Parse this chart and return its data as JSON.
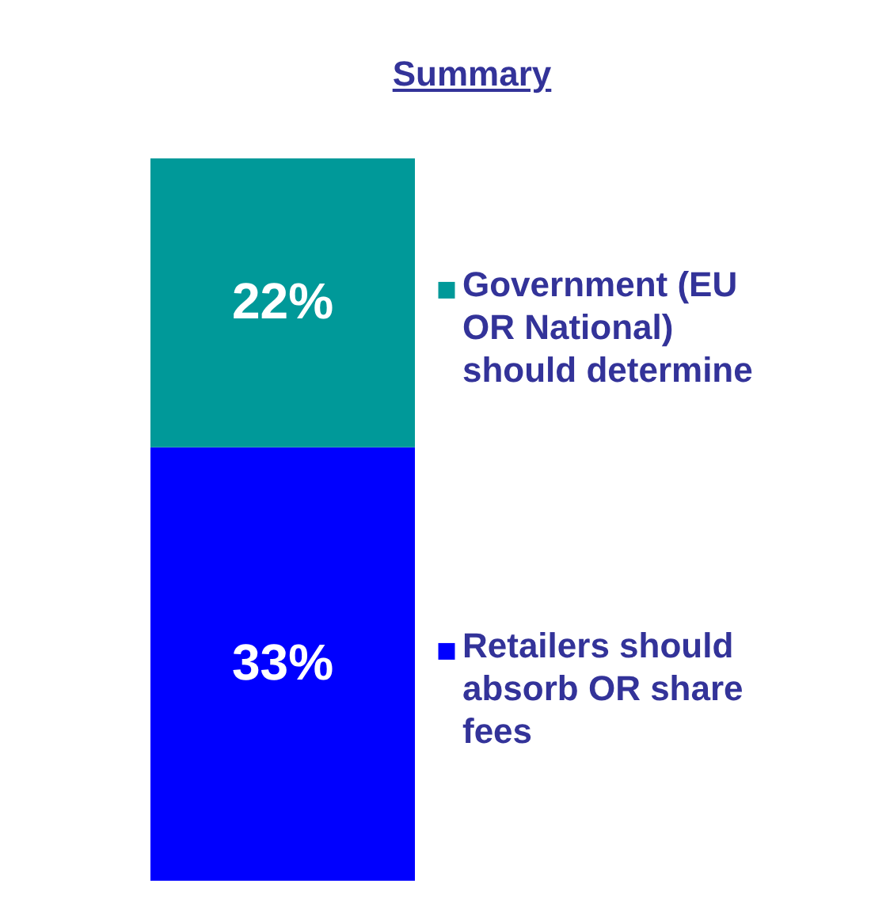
{
  "chart_data": {
    "type": "bar",
    "title": "Summary",
    "categories": [
      null
    ],
    "stacked": true,
    "legend": "right",
    "series": [
      {
        "name": "Retailers should absorb OR share fees",
        "color": "#0000ff",
        "values": [
          33
        ],
        "value_labels": [
          "33%"
        ]
      },
      {
        "name": "Government (EU OR National) should determine",
        "color": "#009999",
        "values": [
          22
        ],
        "value_labels": [
          "22%"
        ]
      }
    ]
  }
}
